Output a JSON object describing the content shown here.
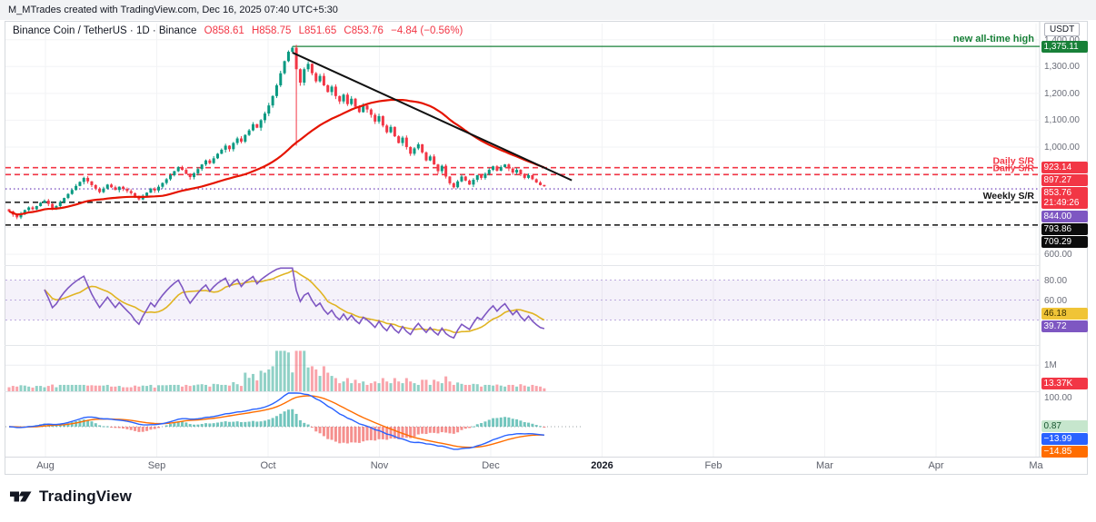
{
  "topbar": {
    "text": "M_MTrades created with TradingView.com, Dec 16, 2025 07:40 UTC+5:30"
  },
  "header": {
    "pair": "Binance Coin / TetherUS · 1D · Binance",
    "o": "O858.61",
    "h": "H858.75",
    "l": "L851.65",
    "c": "C853.76",
    "change": "−4.84 (−0.56%)"
  },
  "price_axis": {
    "unit": "USDT",
    "ticks": [
      {
        "label": "1,400.00",
        "price": 1400
      },
      {
        "label": "1,300.00",
        "price": 1300
      },
      {
        "label": "1,200.00",
        "price": 1200
      },
      {
        "label": "1,100.00",
        "price": 1100
      },
      {
        "label": "1,000.00",
        "price": 1000
      },
      {
        "label": "600.00",
        "price": 600
      }
    ],
    "badges": [
      {
        "label": "1,375.11",
        "price": 1375.11,
        "bg": "#188038",
        "fg": "#ffffff"
      },
      {
        "label": "923.14",
        "price": 923.14,
        "bg": "#f23645",
        "fg": "#ffffff"
      },
      {
        "label": "897.27",
        "price": 897.27,
        "bg": "#f23645",
        "fg": "#ffffff"
      },
      {
        "label": "853.76",
        "price": 853.76,
        "bg": "#f23645",
        "fg": "#ffffff",
        "sub": "21:49:26"
      },
      {
        "label": "844.00",
        "price": 844,
        "bg": "#7e57c2",
        "fg": "#ffffff"
      },
      {
        "label": "793.86",
        "price": 793.86,
        "bg": "#0c0c0c",
        "fg": "#ffffff"
      },
      {
        "label": "709.29",
        "price": 709.29,
        "bg": "#0c0c0c",
        "fg": "#ffffff"
      }
    ]
  },
  "oscillator_axis": {
    "ticks": [
      {
        "label": "80.00",
        "value": 80
      },
      {
        "label": "60.00",
        "value": 60
      }
    ],
    "badges": [
      {
        "label": "46.18",
        "value": 46.18,
        "bg": "#f0c437",
        "fg": "#3a2f00"
      },
      {
        "label": "39.72",
        "value": 39.72,
        "bg": "#7e57c2",
        "fg": "#ffffff"
      }
    ]
  },
  "volume_axis": {
    "ticks": [
      {
        "label": "1M",
        "value": 1000000
      }
    ],
    "badges": [
      {
        "label": "13.37K",
        "bg": "#f23645",
        "fg": "#ffffff"
      }
    ]
  },
  "macd_axis": {
    "ticks": [
      {
        "label": "100.00"
      }
    ],
    "badges": [
      {
        "label": "0.87",
        "bg": "#c6e6cd",
        "fg": "#14532d"
      },
      {
        "label": "−13.99",
        "bg": "#2962ff",
        "fg": "#ffffff"
      },
      {
        "label": "−14.85",
        "bg": "#ff6d00",
        "fg": "#ffffff"
      }
    ]
  },
  "time_axis": {
    "labels": [
      "Aug",
      "Sep",
      "Oct",
      "Nov",
      "Dec",
      "2026",
      "Feb",
      "Mar",
      "Apr",
      "Ma"
    ],
    "emphasis_index": 5
  },
  "footer": {
    "brand": "TradingView"
  },
  "chart_data": {
    "type": "candlestick",
    "title": "Binance Coin / TetherUS · 1D · Binance",
    "ylim": [
      560,
      1460
    ],
    "closes": [
      760,
      748,
      738,
      752,
      765,
      775,
      768,
      780,
      792,
      800,
      788,
      772,
      780,
      795,
      810,
      825,
      840,
      855,
      870,
      885,
      872,
      858,
      845,
      832,
      845,
      860,
      850,
      840,
      852,
      844,
      836,
      828,
      815,
      805,
      818,
      830,
      845,
      838,
      852,
      866,
      880,
      895,
      910,
      925,
      915,
      900,
      888,
      902,
      918,
      935,
      950,
      940,
      958,
      975,
      990,
      1005,
      992,
      1015,
      1032,
      1020,
      1045,
      1062,
      1085,
      1072,
      1100,
      1125,
      1155,
      1190,
      1230,
      1275,
      1320,
      1355,
      1370,
      1290,
      1240,
      1290,
      1310,
      1275,
      1245,
      1265,
      1230,
      1205,
      1225,
      1190,
      1170,
      1195,
      1160,
      1180,
      1150,
      1130,
      1155,
      1140,
      1120,
      1095,
      1115,
      1080,
      1055,
      1075,
      1040,
      1015,
      1035,
      1000,
      975,
      995,
      1010,
      980,
      950,
      965,
      935,
      910,
      930,
      890,
      865,
      850,
      872,
      890,
      875,
      860,
      878,
      895,
      885,
      900,
      915,
      928,
      912,
      925,
      935,
      920,
      905,
      915,
      898,
      885,
      895,
      880,
      868,
      858,
      853.76
    ],
    "last_candle": {
      "open": 858.61,
      "high": 858.75,
      "low": 851.65,
      "close": 853.76,
      "change": "-4.84 (-0.56%)"
    },
    "ath": {
      "price": 1375.11,
      "label": "new all-time high",
      "color": "#188038",
      "start_candle": 72
    },
    "levels": [
      {
        "price": 923.14,
        "label": "Daily S/R",
        "color": "#f23645",
        "dash": "dashed"
      },
      {
        "price": 897.27,
        "label": "Daily S/R",
        "color": "#f23645",
        "dash": "dashed"
      },
      {
        "price": 844,
        "label": "",
        "color": "#7e57c2",
        "dash": "dotted"
      },
      {
        "price": 793.86,
        "label": "Weekly S/R",
        "color": "#111111",
        "dash": "dashed"
      },
      {
        "price": 709.29,
        "label": "",
        "color": "#111111",
        "dash": "dashed"
      }
    ],
    "trendline": {
      "from_candle": 72,
      "from_price": 1352,
      "to_candle": 143,
      "to_price": 876,
      "color": "#111111"
    },
    "ma_line": {
      "length": 40,
      "color": "#e51400"
    },
    "oscillator": {
      "type": "RSI",
      "length": 9,
      "signal_smooth": 9,
      "colors": {
        "fast": "#7e57c2",
        "slow": "#e0b422"
      },
      "band": [
        40,
        80
      ],
      "grid": [
        80,
        60,
        40
      ],
      "last_fast": 39.72,
      "last_slow": 46.18
    },
    "volume": {
      "up_color": "rgba(8,153,129,0.45)",
      "down_color": "rgba(242,54,69,0.45)",
      "grid_label": "1M",
      "last_label": "13.37K"
    },
    "macd": {
      "fast": 12,
      "slow": 26,
      "signal": 9,
      "colors": {
        "macd": "#2962ff",
        "signal": "#ff6d00",
        "hist_up": "rgba(38,166,154,0.65)",
        "hist_down": "rgba(239,83,80,0.65)"
      },
      "last": {
        "hist": 0.87,
        "macd": -13.99,
        "signal": -14.85
      }
    }
  }
}
